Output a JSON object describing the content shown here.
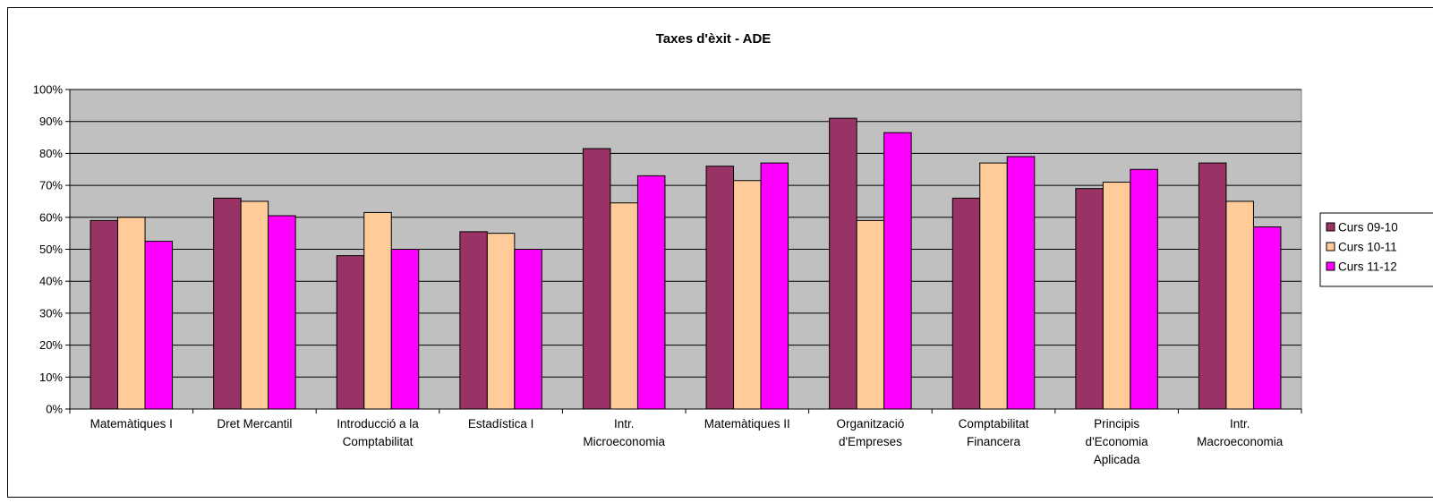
{
  "chart_data": {
    "type": "bar",
    "title": "Taxes d'èxit - ADE",
    "xlabel": "",
    "ylabel": "",
    "ylim": [
      0,
      100
    ],
    "y_ticks": [
      "0%",
      "10%",
      "20%",
      "30%",
      "40%",
      "50%",
      "60%",
      "70%",
      "80%",
      "90%",
      "100%"
    ],
    "grid": true,
    "legend_position": "right",
    "categories": [
      [
        "Matemàtiques I"
      ],
      [
        "Dret Mercantil"
      ],
      [
        "Introducció a la",
        "Comptabilitat"
      ],
      [
        "Estadística I"
      ],
      [
        "Intr.",
        "Microeconomia"
      ],
      [
        "Matemàtiques II"
      ],
      [
        "Organització",
        "d'Empreses"
      ],
      [
        "Comptabilitat",
        "Financera"
      ],
      [
        "Principis",
        "d'Economia",
        "Aplicada"
      ],
      [
        "Intr.",
        "Macroeconomia"
      ]
    ],
    "series": [
      {
        "name": "Curs 09-10",
        "color": "#993366",
        "values": [
          59,
          66,
          48,
          55.5,
          81.5,
          76,
          91,
          66,
          69,
          77
        ]
      },
      {
        "name": "Curs 10-11",
        "color": "#ffcc99",
        "values": [
          60,
          65,
          61.5,
          55,
          64.5,
          71.5,
          59,
          77,
          71,
          65
        ]
      },
      {
        "name": "Curs 11-12",
        "color": "#ff00ff",
        "values": [
          52.5,
          60.5,
          50,
          50,
          73,
          77,
          86.5,
          79,
          75,
          57
        ]
      }
    ],
    "plot_background": "#c0c0c0"
  }
}
